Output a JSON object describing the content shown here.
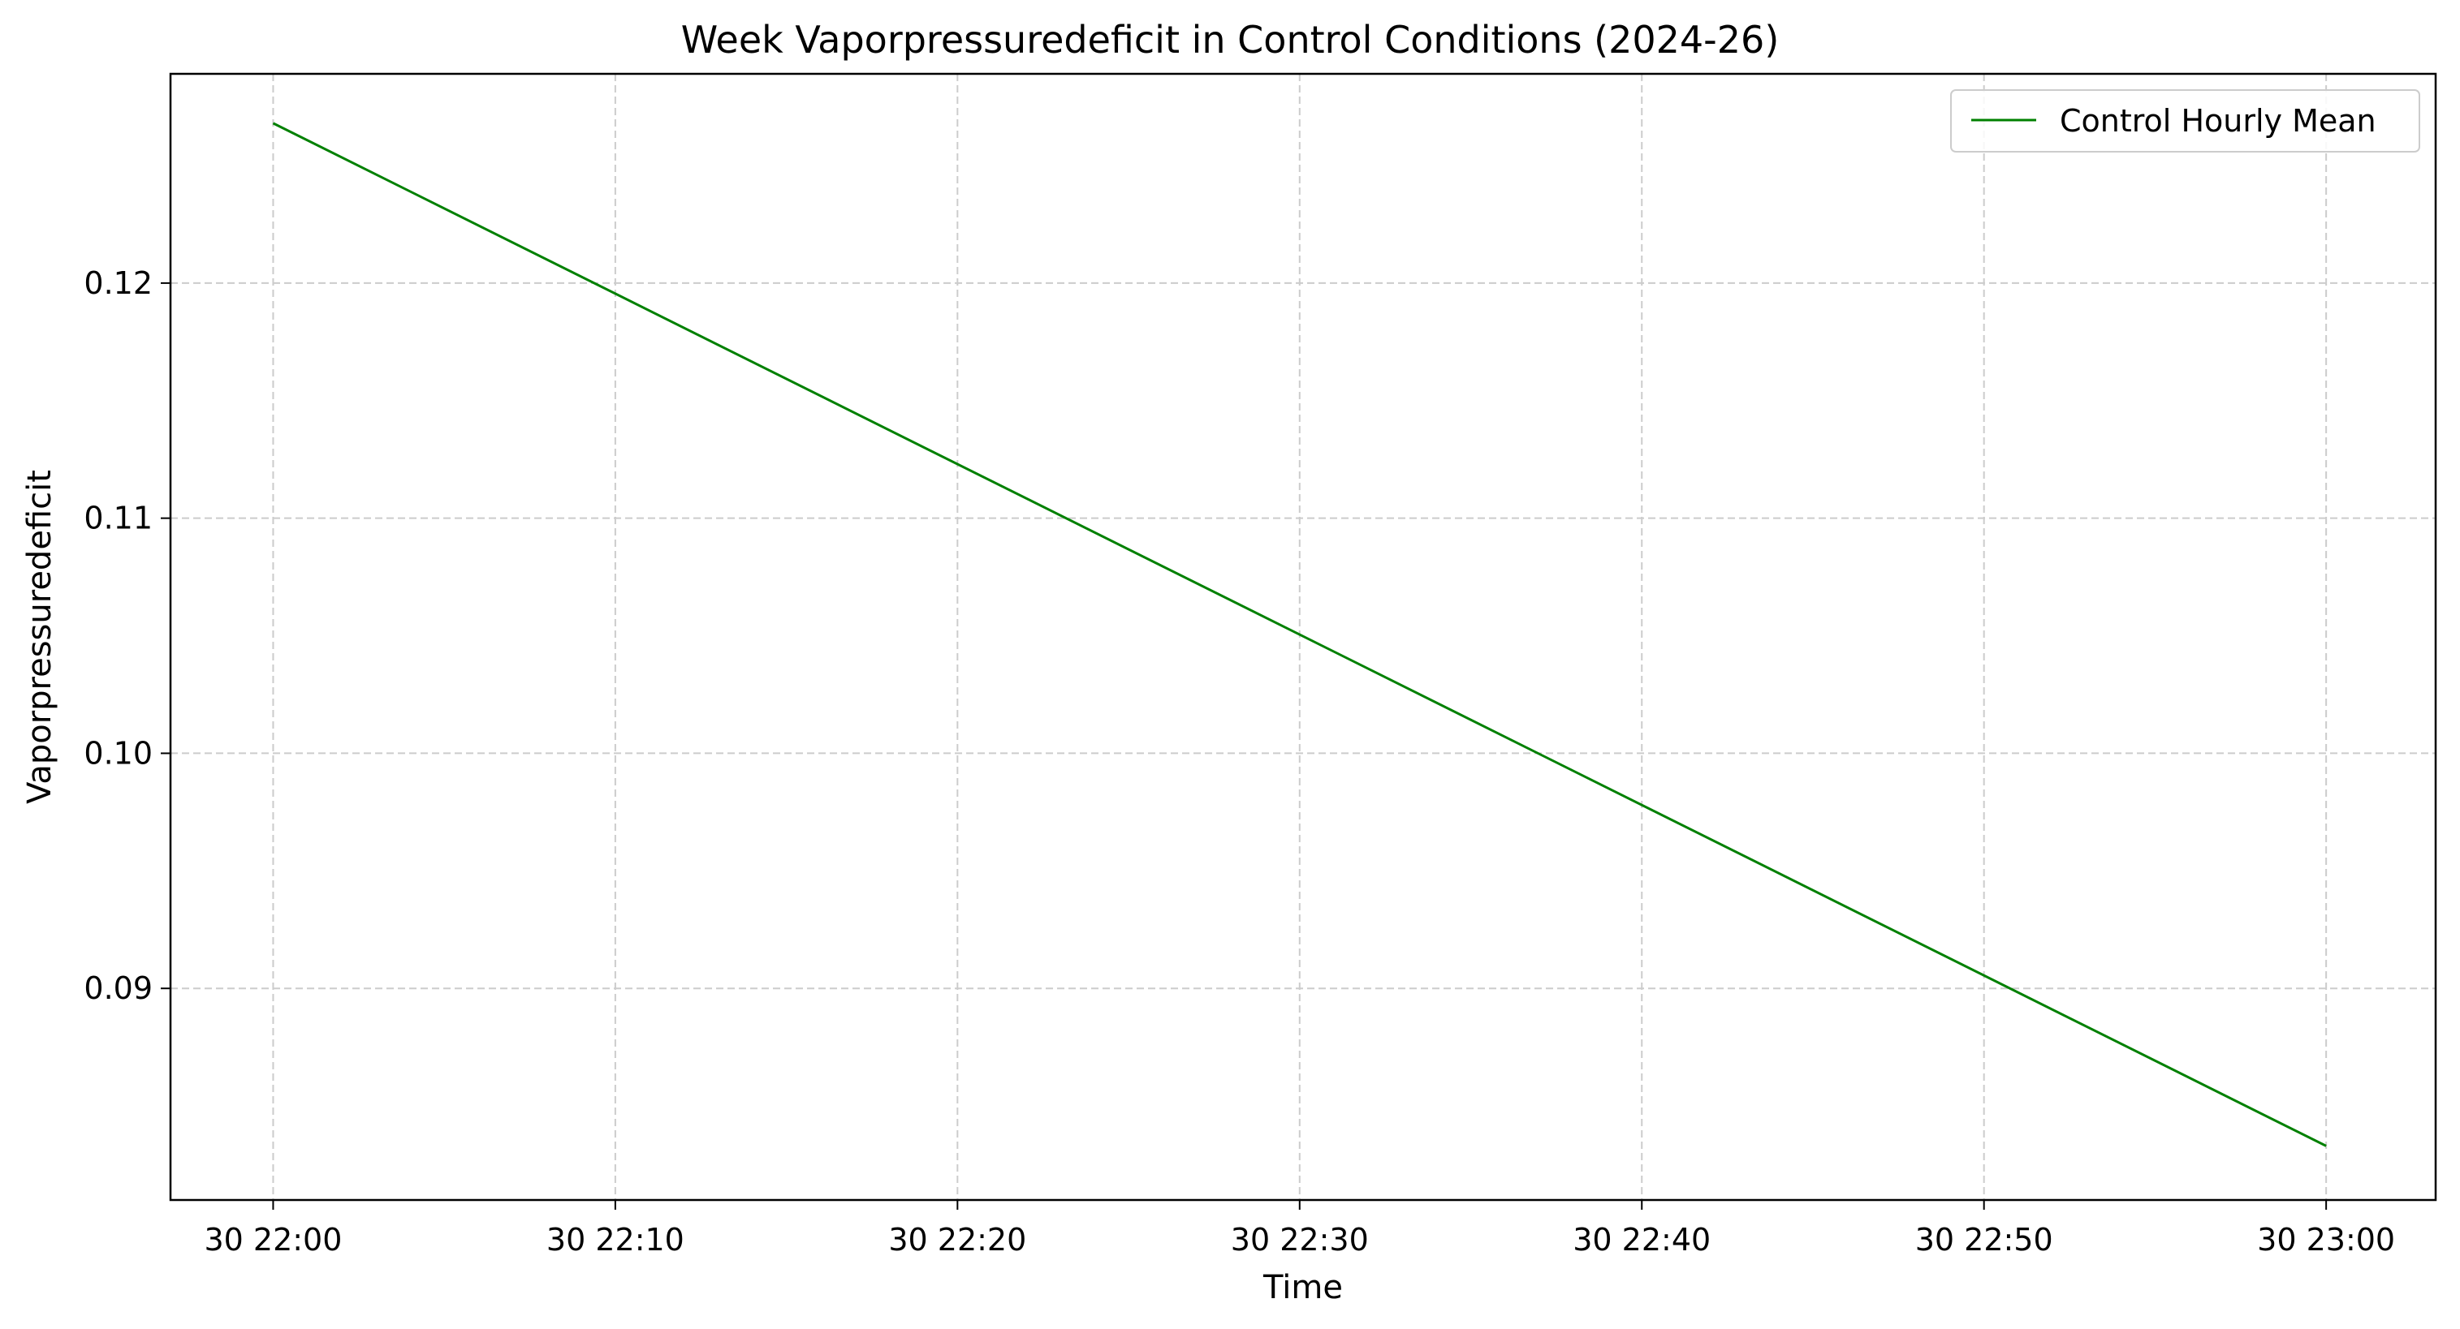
{
  "chart_data": {
    "type": "line",
    "title": "Week Vaporpressuredeficit in Control Conditions (2024-26)",
    "xlabel": "Time",
    "ylabel": "Vaporpressuredeficit",
    "x_tick_labels": [
      "30 22:00",
      "30 22:10",
      "30 22:20",
      "30 22:30",
      "30 22:40",
      "30 22:50",
      "30 23:00"
    ],
    "y_tick_labels": [
      "0.09",
      "0.10",
      "0.11",
      "0.12"
    ],
    "y_ticks": [
      0.09,
      0.1,
      0.11,
      0.12
    ],
    "x_range_minutes_after_22_00": [
      -3,
      63.2
    ],
    "ylim": [
      0.081,
      0.1289
    ],
    "grid": true,
    "legend_position": "top-right",
    "series": [
      {
        "name": "Control Hourly Mean",
        "color": "#008000",
        "x": [
          "30 22:00",
          "30 23:00"
        ],
        "y": [
          0.1268,
          0.0833
        ]
      }
    ]
  },
  "colors": {
    "line": "#008000",
    "grid": "#cccccc",
    "axes": "#000000"
  }
}
